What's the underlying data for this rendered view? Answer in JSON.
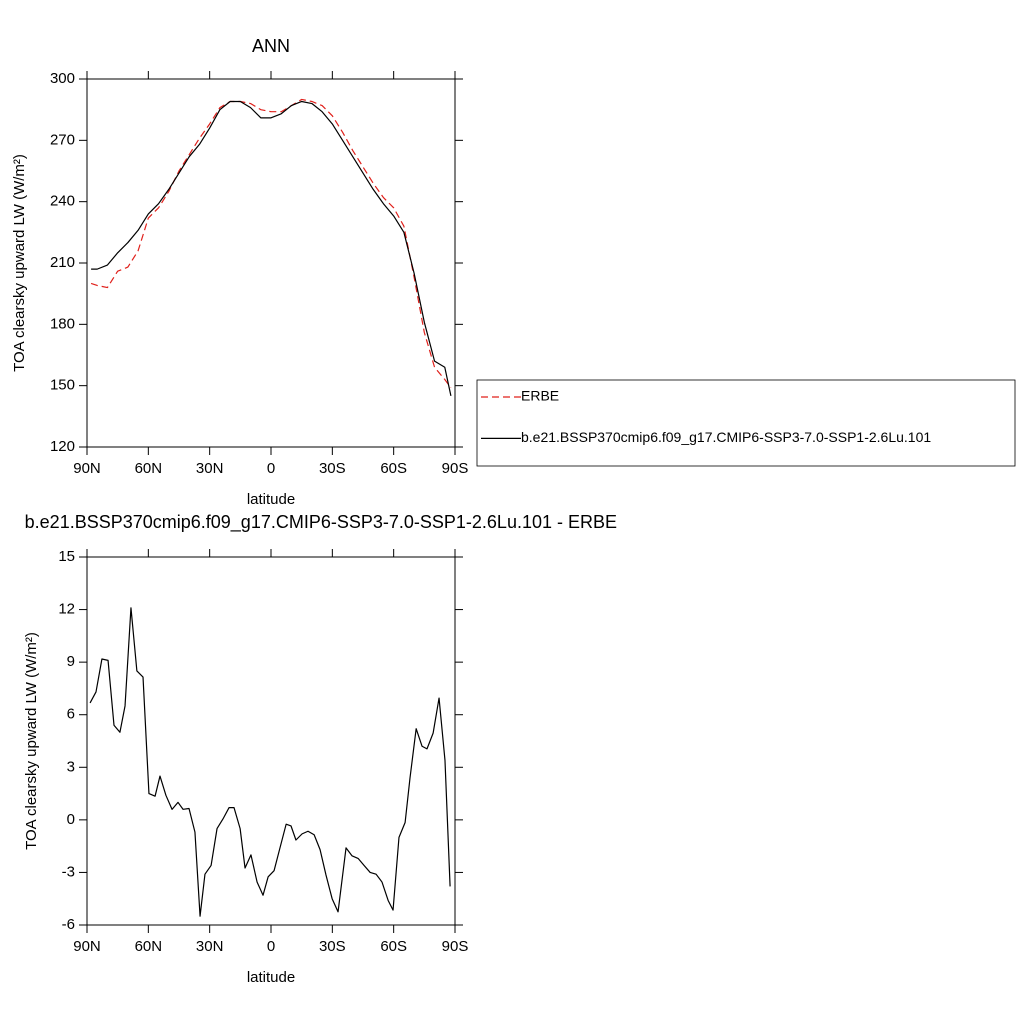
{
  "chart_data": [
    {
      "type": "line",
      "title": "ANN",
      "xlabel": "latitude",
      "ylabel": "TOA clearsky upward LW (W/m²)",
      "x": [
        88,
        85,
        80,
        75,
        70,
        65,
        60,
        55,
        50,
        45,
        40,
        35,
        30,
        25,
        20,
        15,
        10,
        5,
        0,
        -5,
        -10,
        -15,
        -20,
        -25,
        -30,
        -35,
        -40,
        -45,
        -50,
        -55,
        -60,
        -65,
        -70,
        -75,
        -80,
        -85,
        -88
      ],
      "series": [
        {
          "name": "ERBE",
          "color": "#e0201b",
          "linestyle": "dashed",
          "values": [
            200,
            199,
            198,
            206,
            208,
            216,
            232,
            237,
            245,
            255,
            263,
            271,
            278,
            286,
            289,
            289,
            288,
            285,
            284,
            284,
            287,
            290,
            289,
            287,
            282,
            274,
            265,
            257,
            249,
            242,
            237,
            228,
            203,
            176,
            159,
            153,
            149
          ]
        },
        {
          "name": "b.e21.BSSP370cmip6.f09_g17.CMIP6-SSP3-7.0-SSP1-2.6Lu.101",
          "color": "#000000",
          "linestyle": "solid",
          "values": [
            207,
            207,
            209,
            215,
            220,
            226,
            234,
            239,
            246,
            254,
            262,
            268,
            276,
            285,
            289,
            289,
            286,
            281,
            281,
            283,
            287,
            289,
            288,
            284,
            278,
            270,
            262,
            254,
            246,
            239,
            233,
            225,
            205,
            181,
            162,
            159,
            145
          ]
        }
      ],
      "xlim": [
        90,
        -90
      ],
      "xticks": [
        {
          "value": 90,
          "label": "90N"
        },
        {
          "value": 60,
          "label": "60N"
        },
        {
          "value": 30,
          "label": "30N"
        },
        0,
        {
          "value": -30,
          "label": "30S"
        },
        {
          "value": -60,
          "label": "60S"
        },
        {
          "value": -90,
          "label": "90S"
        }
      ],
      "ylim": [
        120,
        300
      ],
      "yticks": [
        120,
        150,
        180,
        210,
        240,
        270,
        300
      ],
      "legend": "right"
    },
    {
      "type": "line",
      "title": "b.e21.BSSP370cmip6.f09_g17.CMIP6-SSP3-7.0-SSP1-2.6Lu.101 - ERBE",
      "xlabel": "latitude",
      "ylabel": "TOA clearsky upward LW (W/m²)",
      "x": [
        88.5,
        85.6,
        82.7,
        79.7,
        76.8,
        73.9,
        71.4,
        68.5,
        65.6,
        62.6,
        59.7,
        56.7,
        54.3,
        51.4,
        48.4,
        45.5,
        43,
        40.1,
        37.2,
        34.7,
        32.3,
        29.3,
        26.4,
        23.5,
        20.5,
        18.1,
        15.1,
        12.7,
        9.8,
        6.8,
        3.9,
        1.4,
        -1.5,
        -4.5,
        -7.4,
        -9.8,
        -12.2,
        -15.2,
        -18.1,
        -21.1,
        -24,
        -26.9,
        -29.9,
        -32.8,
        -36.7,
        -39.6,
        -42.6,
        -45.5,
        -48.5,
        -51.4,
        -54.3,
        -57.3,
        -59.7,
        -62.6,
        -65.6,
        -68,
        -71,
        -73.9,
        -76.3,
        -79.3,
        -82.2,
        -85.1,
        -87.6
      ],
      "series": [
        {
          "color": "#000000",
          "linestyle": "solid",
          "values": [
            6.67,
            7.3,
            9.18,
            9.1,
            5.4,
            5.0,
            6.5,
            12.1,
            8.5,
            8.15,
            1.5,
            1.35,
            2.5,
            1.4,
            0.6,
            1.0,
            0.6,
            0.65,
            -0.7,
            -5.5,
            -3.1,
            -2.6,
            -0.5,
            0.05,
            0.7,
            0.7,
            -0.5,
            -2.75,
            -2.0,
            -3.55,
            -4.3,
            -3.25,
            -2.9,
            -1.55,
            -0.25,
            -0.35,
            -1.15,
            -0.8,
            -0.65,
            -0.85,
            -1.7,
            -3.15,
            -4.5,
            -5.25,
            -1.6,
            -2.05,
            -2.2,
            -2.6,
            -3.0,
            -3.1,
            -3.55,
            -4.6,
            -5.15,
            -1.0,
            -0.15,
            2.4,
            5.2,
            4.2,
            4.05,
            4.95,
            6.95,
            3.4,
            -3.8
          ]
        }
      ],
      "xlim": [
        90,
        -90
      ],
      "xticks": [
        {
          "value": 90,
          "label": "90N"
        },
        {
          "value": 60,
          "label": "60N"
        },
        {
          "value": 30,
          "label": "30N"
        },
        0,
        {
          "value": -30,
          "label": "30S"
        },
        {
          "value": -60,
          "label": "60S"
        },
        {
          "value": -90,
          "label": "90S"
        }
      ],
      "ylim": [
        -6,
        15
      ],
      "yticks": [
        -6,
        -3,
        0,
        3,
        6,
        9,
        12,
        15
      ]
    }
  ]
}
